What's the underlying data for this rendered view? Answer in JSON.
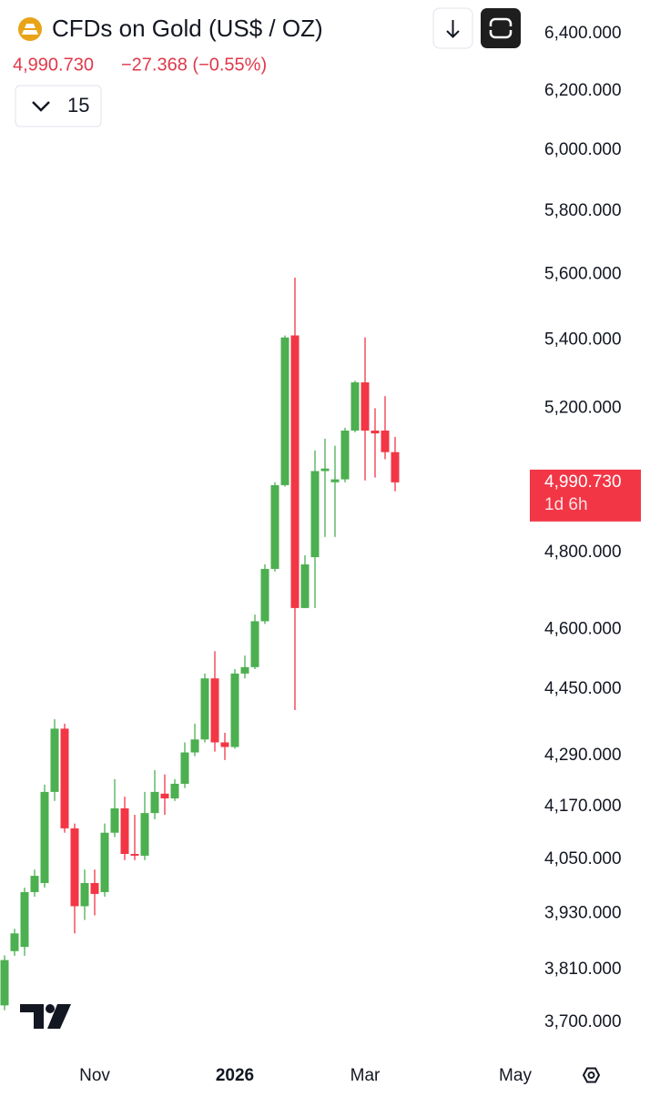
{
  "header": {
    "title": "CFDs on Gold (US$ / OZ)",
    "change": "−27.368 (−0.55%)",
    "interval": "15"
  },
  "chart_data": {
    "type": "candlestick",
    "log": true,
    "grid": false,
    "up_color": "#4caf50",
    "down_color": "#f23645",
    "last_price": {
      "value": 4990.73,
      "label": "4,990.730"
    },
    "countdown": "1d 6h",
    "ylim": [
      3650,
      6520
    ],
    "yticks": [
      {
        "value": 6400,
        "label": "6,400.000"
      },
      {
        "value": 6200,
        "label": "6,200.000"
      },
      {
        "value": 6000,
        "label": "6,000.000"
      },
      {
        "value": 5800,
        "label": "5,800.000"
      },
      {
        "value": 5600,
        "label": "5,600.000"
      },
      {
        "value": 5400,
        "label": "5,400.000"
      },
      {
        "value": 5200,
        "label": "5,200.000"
      },
      {
        "value": 4800,
        "label": "4,800.000"
      },
      {
        "value": 4600,
        "label": "4,600.000"
      },
      {
        "value": 4450,
        "label": "4,450.000"
      },
      {
        "value": 4290,
        "label": "4,290.000"
      },
      {
        "value": 4170,
        "label": "4,170.000"
      },
      {
        "value": 4050,
        "label": "4,050.000"
      },
      {
        "value": 3930,
        "label": "3,930.000"
      },
      {
        "value": 3810,
        "label": "3,810.000"
      },
      {
        "value": 3700,
        "label": "3,700.000"
      }
    ],
    "categories": [
      null,
      null,
      null,
      null,
      null,
      null,
      null,
      null,
      null,
      "Nov",
      null,
      null,
      null,
      null,
      null,
      null,
      null,
      null,
      null,
      null,
      null,
      null,
      null,
      "2026",
      null,
      null,
      null,
      null,
      null,
      null,
      null,
      null,
      null,
      null,
      null,
      null,
      "Mar",
      null,
      null,
      null,
      null,
      null,
      null,
      null,
      null,
      null,
      null,
      null,
      null,
      null,
      null,
      "May"
    ],
    "open": [
      3735,
      3849,
      3858,
      3977,
      3997,
      4204,
      4354,
      4120,
      3946,
      3997,
      3977,
      4110,
      4166,
      4062,
      4058,
      4155,
      4200,
      4189,
      4223,
      4297,
      4328,
      4477,
      4321,
      4310,
      4489,
      4505,
      4621,
      4757,
      4983,
      5414,
      4655,
      4788,
      5022,
      4991,
      4999,
      5136,
      5275,
      5136,
      5136,
      5075,
      null,
      null,
      null,
      null,
      null,
      null,
      null,
      null,
      null,
      null,
      null,
      null
    ],
    "high": [
      3840,
      3897,
      3987,
      4027,
      4221,
      4377,
      4366,
      4131,
      4027,
      4027,
      4131,
      4234,
      4193,
      4151,
      4204,
      4255,
      4245,
      4234,
      4321,
      4366,
      4489,
      4545,
      4344,
      4500,
      4534,
      4638,
      4769,
      4991,
      5414,
      5590,
      4793,
      5080,
      5113,
      5093,
      5144,
      5280,
      5408,
      5200,
      5235,
      5118,
      null,
      null,
      null,
      null,
      null,
      null,
      null,
      null,
      null,
      null,
      null,
      null
    ],
    "low": [
      3725,
      3839,
      3839,
      3967,
      3987,
      4183,
      4110,
      3887,
      3916,
      3926,
      3967,
      4100,
      4048,
      4048,
      4048,
      4141,
      4151,
      4183,
      4213,
      4288,
      4321,
      4299,
      4279,
      4306,
      4477,
      4500,
      4614,
      4750,
      4979,
      4399,
      4655,
      4655,
      4842,
      4842,
      4991,
      5131,
      4996,
      5004,
      5055,
      4966,
      null,
      null,
      null,
      null,
      null,
      null,
      null,
      null,
      null,
      null,
      null,
      null
    ],
    "close": [
      3830,
      3887,
      3977,
      4013,
      4204,
      4354,
      4120,
      3946,
      3997,
      3973,
      4110,
      4166,
      4062,
      4058,
      4155,
      4204,
      4189,
      4223,
      4297,
      4328,
      4477,
      4321,
      4310,
      4489,
      4505,
      4621,
      4757,
      4983,
      5408,
      4655,
      4769,
      5022,
      5029,
      4999,
      5136,
      5275,
      5136,
      5128,
      5075,
      4990.73,
      null,
      null,
      null,
      null,
      null,
      null,
      null,
      null,
      null,
      null,
      null,
      null
    ]
  }
}
